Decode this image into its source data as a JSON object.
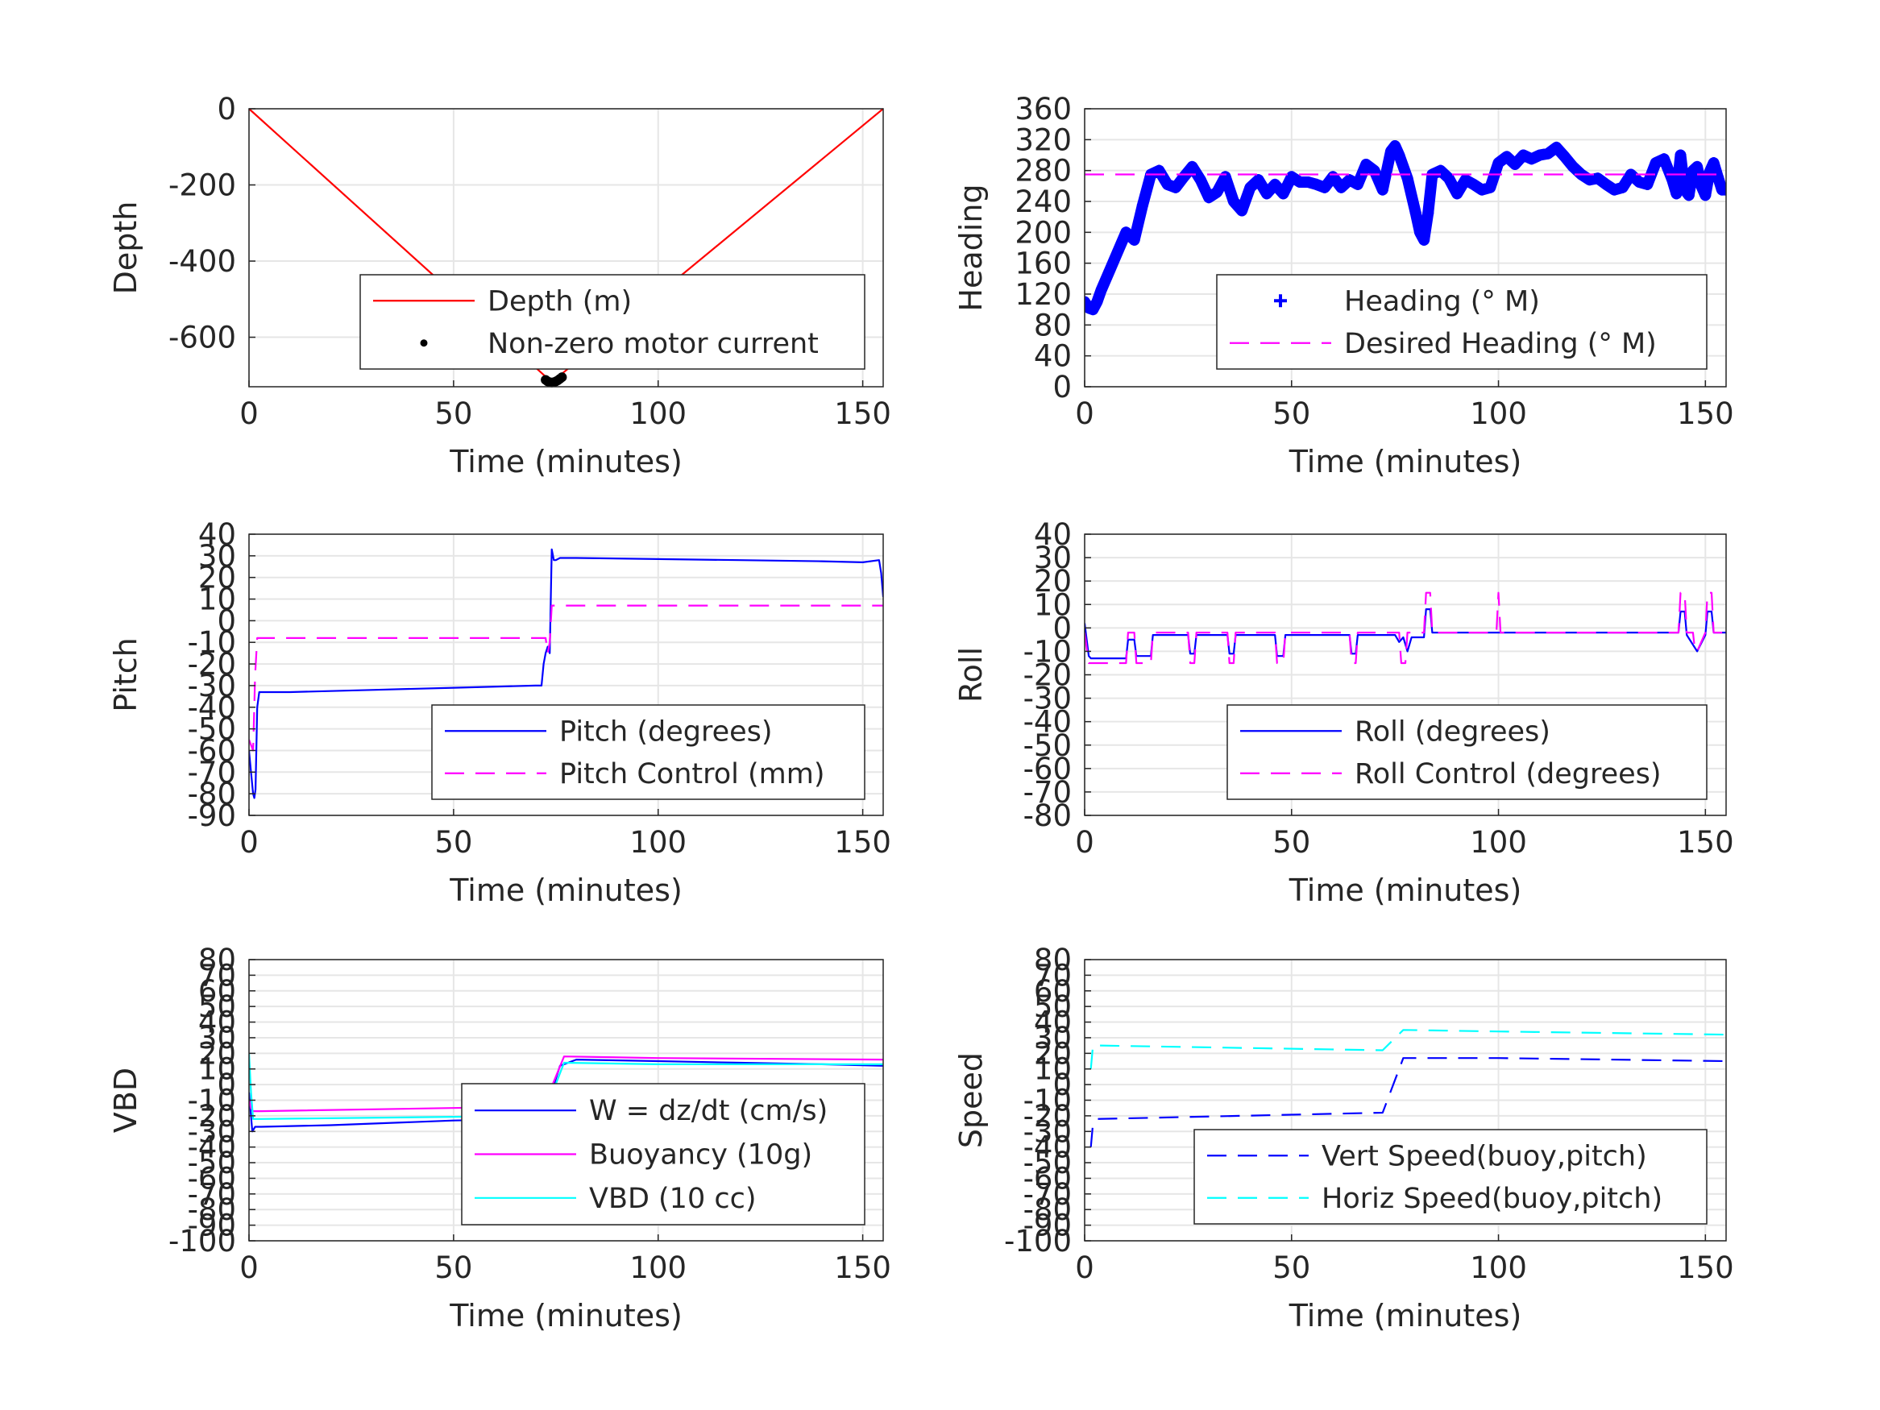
{
  "figure": {
    "layout": "3x2 subplots",
    "background": "#ffffff"
  },
  "chart_data": [
    {
      "id": "depth",
      "type": "line",
      "xlabel": "Time (minutes)",
      "ylabel": "Depth",
      "xlim": [
        0,
        155
      ],
      "ylim": [
        -730,
        0
      ],
      "xticks": [
        0,
        50,
        100,
        150
      ],
      "yticks": [
        0,
        -200,
        -400,
        -600
      ],
      "grid": true,
      "legend_position": "bottom-right",
      "series": [
        {
          "name": "Depth (m)",
          "color": "#ff0000",
          "style": "solid",
          "kind": "line",
          "x": [
            0,
            74,
            155
          ],
          "y": [
            0,
            -718,
            0
          ]
        },
        {
          "name": "Non-zero motor current",
          "color": "#000000",
          "kind": "dots",
          "x": [
            72.5,
            73,
            73.5,
            74,
            74.5,
            75,
            75.5,
            76,
            76.5
          ],
          "y": [
            -712,
            -716,
            -718,
            -719,
            -718,
            -716,
            -713,
            -709,
            -705
          ]
        }
      ]
    },
    {
      "id": "heading",
      "type": "scatter",
      "xlabel": "Time (minutes)",
      "ylabel": "Heading",
      "xlim": [
        0,
        155
      ],
      "ylim": [
        0,
        360
      ],
      "xticks": [
        0,
        50,
        100,
        150
      ],
      "yticks": [
        0,
        40,
        80,
        120,
        160,
        200,
        240,
        280,
        320,
        360
      ],
      "grid": true,
      "legend_position": "bottom-right",
      "series": [
        {
          "name": "Heading (° M)",
          "color": "#0000ff",
          "kind": "plus",
          "x": [
            0,
            1,
            2,
            3,
            4,
            6,
            8,
            10,
            12,
            14,
            16,
            18,
            20,
            22,
            24,
            26,
            28,
            30,
            32,
            34,
            36,
            38,
            40,
            42,
            44,
            46,
            48,
            50,
            52,
            54,
            56,
            58,
            60,
            62,
            64,
            66,
            68,
            70,
            72,
            74,
            75,
            76,
            78,
            80,
            81,
            82,
            83,
            84,
            86,
            88,
            90,
            92,
            94,
            96,
            98,
            100,
            102,
            104,
            106,
            108,
            110,
            112,
            114,
            116,
            118,
            120,
            122,
            124,
            126,
            128,
            130,
            132,
            134,
            136,
            138,
            140,
            142,
            143,
            144,
            145,
            146,
            147,
            148,
            149,
            150,
            151,
            152,
            153,
            154,
            155
          ],
          "y": [
            110,
            102,
            100,
            110,
            125,
            150,
            175,
            200,
            190,
            235,
            275,
            280,
            262,
            258,
            272,
            285,
            268,
            245,
            252,
            272,
            240,
            228,
            258,
            268,
            250,
            262,
            250,
            272,
            265,
            265,
            262,
            258,
            272,
            258,
            268,
            262,
            288,
            280,
            255,
            305,
            312,
            300,
            270,
            225,
            200,
            190,
            225,
            275,
            280,
            270,
            250,
            268,
            262,
            255,
            258,
            290,
            298,
            288,
            300,
            295,
            300,
            302,
            310,
            298,
            285,
            275,
            268,
            270,
            262,
            255,
            258,
            275,
            265,
            262,
            290,
            295,
            268,
            250,
            300,
            255,
            248,
            280,
            285,
            260,
            248,
            278,
            290,
            272,
            255,
            255
          ]
        },
        {
          "name": "Desired Heading (° M)",
          "color": "#ff00ff",
          "style": "dashed",
          "kind": "line",
          "x": [
            0,
            155
          ],
          "y": [
            275,
            275
          ]
        }
      ]
    },
    {
      "id": "pitch",
      "type": "line",
      "xlabel": "Time (minutes)",
      "ylabel": "Pitch",
      "xlim": [
        0,
        155
      ],
      "ylim": [
        -90,
        40
      ],
      "xticks": [
        0,
        50,
        100,
        150
      ],
      "yticks": [
        40,
        30,
        20,
        10,
        0,
        -10,
        -20,
        -30,
        -40,
        -50,
        -60,
        -70,
        -80,
        -90
      ],
      "grid": true,
      "legend_position": "bottom-right",
      "series": [
        {
          "name": "Pitch (degrees)",
          "color": "#0000ff",
          "style": "solid",
          "kind": "line",
          "x": [
            0,
            0.5,
            1,
            1.3,
            1.6,
            2,
            2.5,
            10,
            30,
            50,
            70,
            71.5,
            72,
            72.5,
            73,
            73.5,
            74,
            74.5,
            75,
            76,
            80,
            100,
            120,
            140,
            150,
            154,
            154.5,
            155
          ],
          "y": [
            -60,
            -70,
            -80,
            -82,
            -78,
            -40,
            -33,
            -33,
            -32,
            -31,
            -30,
            -30,
            -20,
            -15,
            -12,
            -15,
            33,
            28,
            28,
            29,
            29,
            28.5,
            28,
            27.5,
            27,
            28,
            22,
            11
          ]
        },
        {
          "name": "Pitch Control (mm)",
          "color": "#ff00ff",
          "style": "dashed",
          "kind": "line",
          "x": [
            0,
            1,
            1.5,
            2,
            72.5,
            73,
            73.5,
            74,
            155
          ],
          "y": [
            -55,
            -60,
            -25,
            -8,
            -8,
            -15,
            -10,
            7,
            7
          ]
        }
      ]
    },
    {
      "id": "roll",
      "type": "line",
      "xlabel": "Time (minutes)",
      "ylabel": "Roll",
      "xlim": [
        0,
        155
      ],
      "ylim": [
        -80,
        40
      ],
      "xticks": [
        0,
        50,
        100,
        150
      ],
      "yticks": [
        40,
        30,
        20,
        10,
        0,
        -10,
        -20,
        -30,
        -40,
        -50,
        -60,
        -70,
        -80
      ],
      "grid": true,
      "legend_position": "bottom-right",
      "series": [
        {
          "name": "Roll (degrees)",
          "color": "#0000ff",
          "style": "solid",
          "kind": "line",
          "x": [
            0,
            1,
            1.5,
            10,
            10.5,
            12,
            12.5,
            16,
            16.5,
            25,
            25.5,
            26.5,
            27,
            34.5,
            35,
            36,
            36.5,
            46,
            46.5,
            48,
            48.5,
            64,
            64.5,
            65.5,
            66,
            75,
            76,
            77,
            78,
            79,
            80,
            82,
            82.5,
            83.5,
            84,
            100,
            140,
            143.5,
            144,
            145,
            145.5,
            148,
            150,
            150.5,
            151.5,
            152,
            155
          ],
          "y": [
            2,
            -12,
            -13,
            -13,
            -5,
            -5,
            -12,
            -12,
            -3,
            -3,
            -11,
            -11,
            -3,
            -3,
            -11,
            -11,
            -3,
            -3,
            -12,
            -12,
            -3,
            -3,
            -11,
            -11,
            -3,
            -3,
            -6,
            -4,
            -10,
            -4,
            -4,
            -4,
            8,
            8,
            -2,
            -2,
            -2,
            -2,
            7,
            7,
            -3,
            -10,
            -3,
            7,
            7,
            -2,
            -2
          ]
        },
        {
          "name": "Roll Control (degrees)",
          "color": "#ff00ff",
          "style": "dashed",
          "kind": "line",
          "x": [
            0,
            1,
            1.5,
            7,
            7.5,
            10,
            10.5,
            12,
            12.5,
            16,
            16.5,
            25,
            25.5,
            26.5,
            27,
            34.5,
            35,
            36,
            36.5,
            46,
            46.5,
            48,
            48.5,
            64,
            64.5,
            65.5,
            66,
            76,
            76.5,
            77.5,
            78,
            82,
            82.5,
            83.5,
            84,
            99.5,
            100,
            100.5,
            101,
            143.5,
            144,
            145,
            145.5,
            147,
            147.5,
            148,
            150,
            150.5,
            151.5,
            152,
            155
          ],
          "y": [
            -2,
            -15,
            -15,
            -15,
            -15,
            -15,
            -2,
            -2,
            -15,
            -15,
            -2,
            -2,
            -15,
            -15,
            -2,
            -2,
            -15,
            -15,
            -2,
            -2,
            -15,
            -15,
            -2,
            -2,
            -15,
            -15,
            -2,
            -2,
            -15,
            -15,
            -2,
            -2,
            15,
            15,
            -2,
            -2,
            15,
            -2,
            -2,
            -2,
            15,
            15,
            -2,
            -2,
            -10,
            -10,
            -2,
            15,
            15,
            -2,
            -2
          ]
        }
      ]
    },
    {
      "id": "vbd",
      "type": "line",
      "xlabel": "Time (minutes)",
      "ylabel": "VBD",
      "xlim": [
        0,
        155
      ],
      "ylim": [
        -100,
        80
      ],
      "xticks": [
        0,
        50,
        100,
        150
      ],
      "yticks": [
        80,
        70,
        60,
        50,
        40,
        30,
        20,
        10,
        0,
        -10,
        -20,
        -30,
        -40,
        -50,
        -60,
        -70,
        -80,
        -90,
        -100
      ],
      "grid": true,
      "legend_position": "bottom-right",
      "series": [
        {
          "name": "W = dz/dt (cm/s)",
          "color": "#0000ff",
          "style": "solid",
          "kind": "line",
          "x": [
            0,
            0.8,
            1.5,
            3,
            20,
            50,
            70,
            72,
            76,
            80,
            100,
            120,
            140,
            155
          ],
          "y": [
            -5,
            -30,
            -27,
            -27,
            -26,
            -23,
            -22,
            -21,
            12,
            16,
            15,
            14,
            13,
            12
          ]
        },
        {
          "name": "Buoyancy (10g)",
          "color": "#ff00ff",
          "style": "solid",
          "kind": "line",
          "x": [
            0,
            0.5,
            1,
            3,
            72,
            77,
            100,
            155
          ],
          "y": [
            -10,
            -15,
            -17,
            -17,
            -14,
            18,
            17,
            16
          ]
        },
        {
          "name": "VBD (10 cc)",
          "color": "#00ffff",
          "style": "solid",
          "kind": "line",
          "x": [
            0,
            0.5,
            1,
            3,
            72,
            77,
            100,
            155
          ],
          "y": [
            20,
            -5,
            -22,
            -22,
            -20,
            14,
            13,
            13
          ]
        }
      ]
    },
    {
      "id": "speed",
      "type": "line",
      "xlabel": "Time (minutes)",
      "ylabel": "Speed",
      "xlim": [
        0,
        155
      ],
      "ylim": [
        -100,
        80
      ],
      "xticks": [
        0,
        50,
        100,
        150
      ],
      "yticks": [
        80,
        70,
        60,
        50,
        40,
        30,
        20,
        10,
        0,
        -10,
        -20,
        -30,
        -40,
        -50,
        -60,
        -70,
        -80,
        -90,
        -100
      ],
      "grid": true,
      "legend_position": "bottom-right",
      "series": [
        {
          "name": "Vert Speed(buoy,pitch)",
          "color": "#0000ff",
          "style": "dashed",
          "kind": "line",
          "x": [
            1.5,
            2,
            3,
            72,
            77,
            100,
            155
          ],
          "y": [
            -40,
            -25,
            -22,
            -18,
            17,
            17,
            15
          ]
        },
        {
          "name": "Horiz Speed(buoy,pitch)",
          "color": "#00ffff",
          "style": "dashed",
          "kind": "line",
          "x": [
            1.5,
            2,
            3,
            72,
            77,
            100,
            155
          ],
          "y": [
            10,
            25,
            25,
            22,
            35,
            34,
            32
          ]
        }
      ]
    }
  ]
}
